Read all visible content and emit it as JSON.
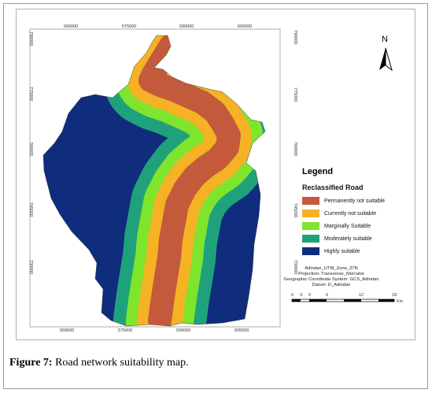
{
  "x_ticks_top": [
    "560000",
    "575000",
    "590000",
    "605000"
  ],
  "x_ticks_bottom": [
    "560000",
    "575000",
    "590000",
    "605000"
  ],
  "y_ticks_left": [
    "790000",
    "775000",
    "760000",
    "745000",
    "730000"
  ],
  "y_ticks_right": [
    "790000",
    "775000",
    "760000",
    "745000",
    "730000"
  ],
  "north_label": "N",
  "legend": {
    "title": "Legend",
    "subtitle": "Reclassified Road",
    "items": [
      {
        "label": "Permanently not suitable",
        "color": "#c45a3c"
      },
      {
        "label": "Currently not suitable",
        "color": "#f4b224"
      },
      {
        "label": "Marginally Suitable",
        "color": "#7fe52c"
      },
      {
        "label": "Moderately suitable",
        "color": "#1fa27c"
      },
      {
        "label": "Highly suitable",
        "color": "#0f2d7c"
      }
    ]
  },
  "projection": {
    "line1": "Adindan_UTM_Zone_37N",
    "line2": "Projection: Transverse_Mercator",
    "line3": "Geographic Coordinate System: GCS_Adindan",
    "line4": "Datum: D_Adindan"
  },
  "scale": {
    "labels": [
      "6",
      "3",
      "0",
      "6",
      "12",
      "18"
    ],
    "unit": "Km"
  },
  "caption": {
    "label": "Figure 7:",
    "text": " Road network suitability map."
  }
}
